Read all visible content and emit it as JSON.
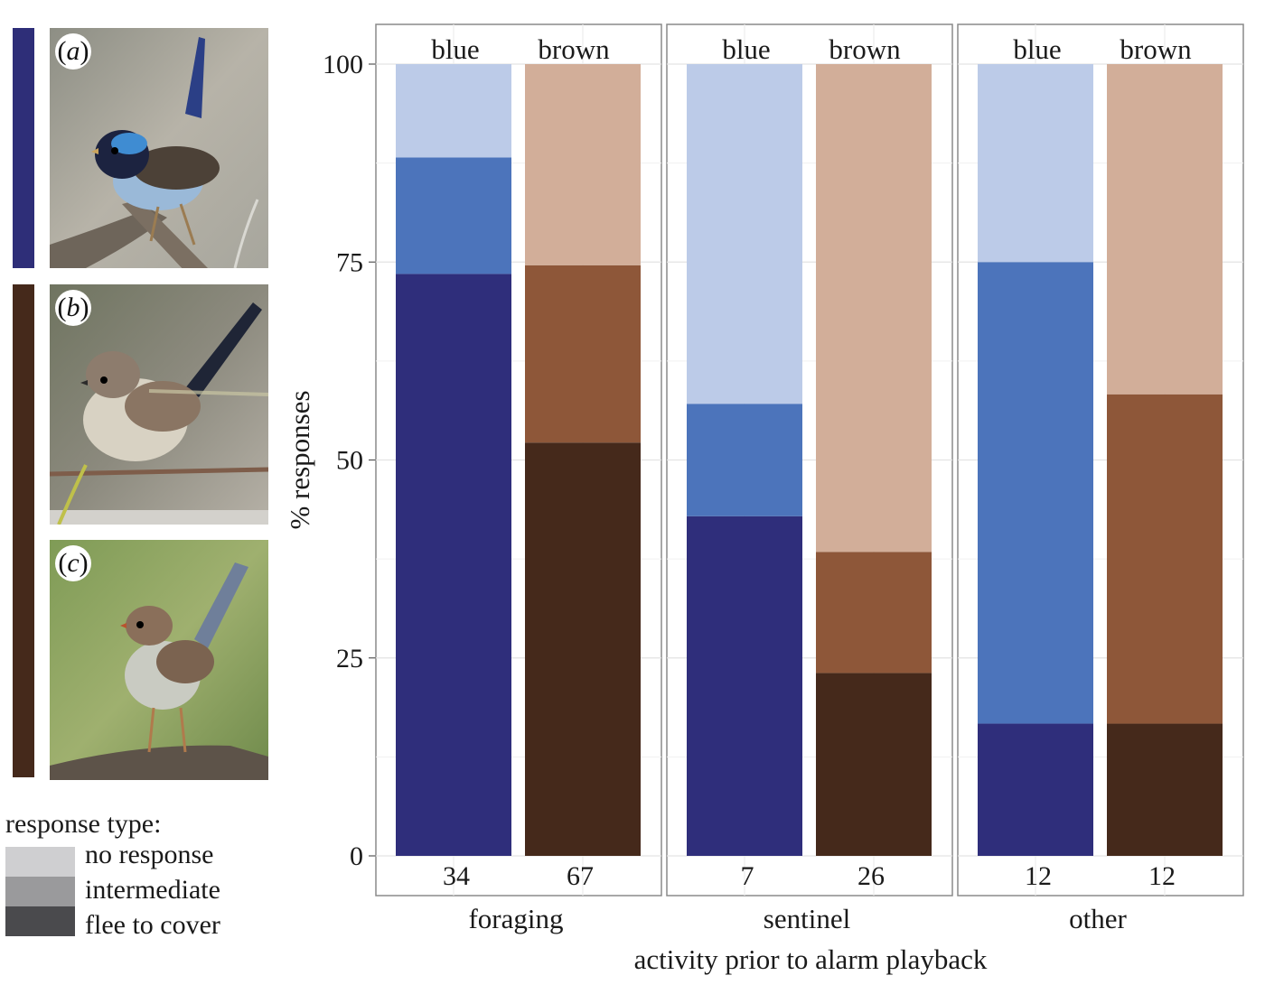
{
  "figure": {
    "panels": [
      {
        "label_open": "(",
        "label_letter": "a",
        "label_close": ")",
        "bird": "blue-male-fairywren-photo",
        "bar_color": "#2e2e78"
      },
      {
        "label_open": "(",
        "label_letter": "b",
        "label_close": ")",
        "bird": "brown-fairywren-photo",
        "bar_color": "#45291b"
      },
      {
        "label_open": "(",
        "label_letter": "c",
        "label_close": ")",
        "bird": "brown-female-fairywren-photo",
        "bar_color": "#45291b"
      }
    ],
    "legend": {
      "title": "response type:",
      "items": [
        {
          "label": "no response",
          "color": "#cfcfd1"
        },
        {
          "label": "intermediate",
          "color": "#9a9a9c"
        },
        {
          "label": "flee to cover",
          "color": "#4a4a4d"
        }
      ]
    }
  },
  "chart_data": {
    "type": "bar",
    "stacked": true,
    "facets": [
      "foraging",
      "sentinel",
      "other"
    ],
    "categories": [
      "blue",
      "brown"
    ],
    "xlabel": "activity prior to alarm playback",
    "ylabel": "% responses",
    "ylim": [
      0,
      100
    ],
    "yticks": [
      0,
      25,
      50,
      75,
      100
    ],
    "grid": true,
    "colors": {
      "blue": {
        "flee to cover": "#2f2e7b",
        "intermediate": "#4c74bb",
        "no response": "#bccbe8"
      },
      "brown": {
        "flee to cover": "#45291b",
        "intermediate": "#8e5739",
        "no response": "#d2ae99"
      }
    },
    "bars": [
      {
        "facet": "foraging",
        "category": "blue",
        "n": "34",
        "flee to cover": 73.5,
        "intermediate": 14.7,
        "no response": 11.8
      },
      {
        "facet": "foraging",
        "category": "brown",
        "n": "67",
        "flee to cover": 52.2,
        "intermediate": 22.4,
        "no response": 25.4
      },
      {
        "facet": "sentinel",
        "category": "blue",
        "n": "7",
        "flee to cover": 42.9,
        "intermediate": 14.2,
        "no response": 42.9
      },
      {
        "facet": "sentinel",
        "category": "brown",
        "n": "26",
        "flee to cover": 23.1,
        "intermediate": 15.3,
        "no response": 61.6
      },
      {
        "facet": "other",
        "category": "blue",
        "n": "12",
        "flee to cover": 16.7,
        "intermediate": 58.3,
        "no response": 25.0
      },
      {
        "facet": "other",
        "category": "brown",
        "n": "12",
        "flee to cover": 16.7,
        "intermediate": 41.6,
        "no response": 41.7
      }
    ]
  }
}
